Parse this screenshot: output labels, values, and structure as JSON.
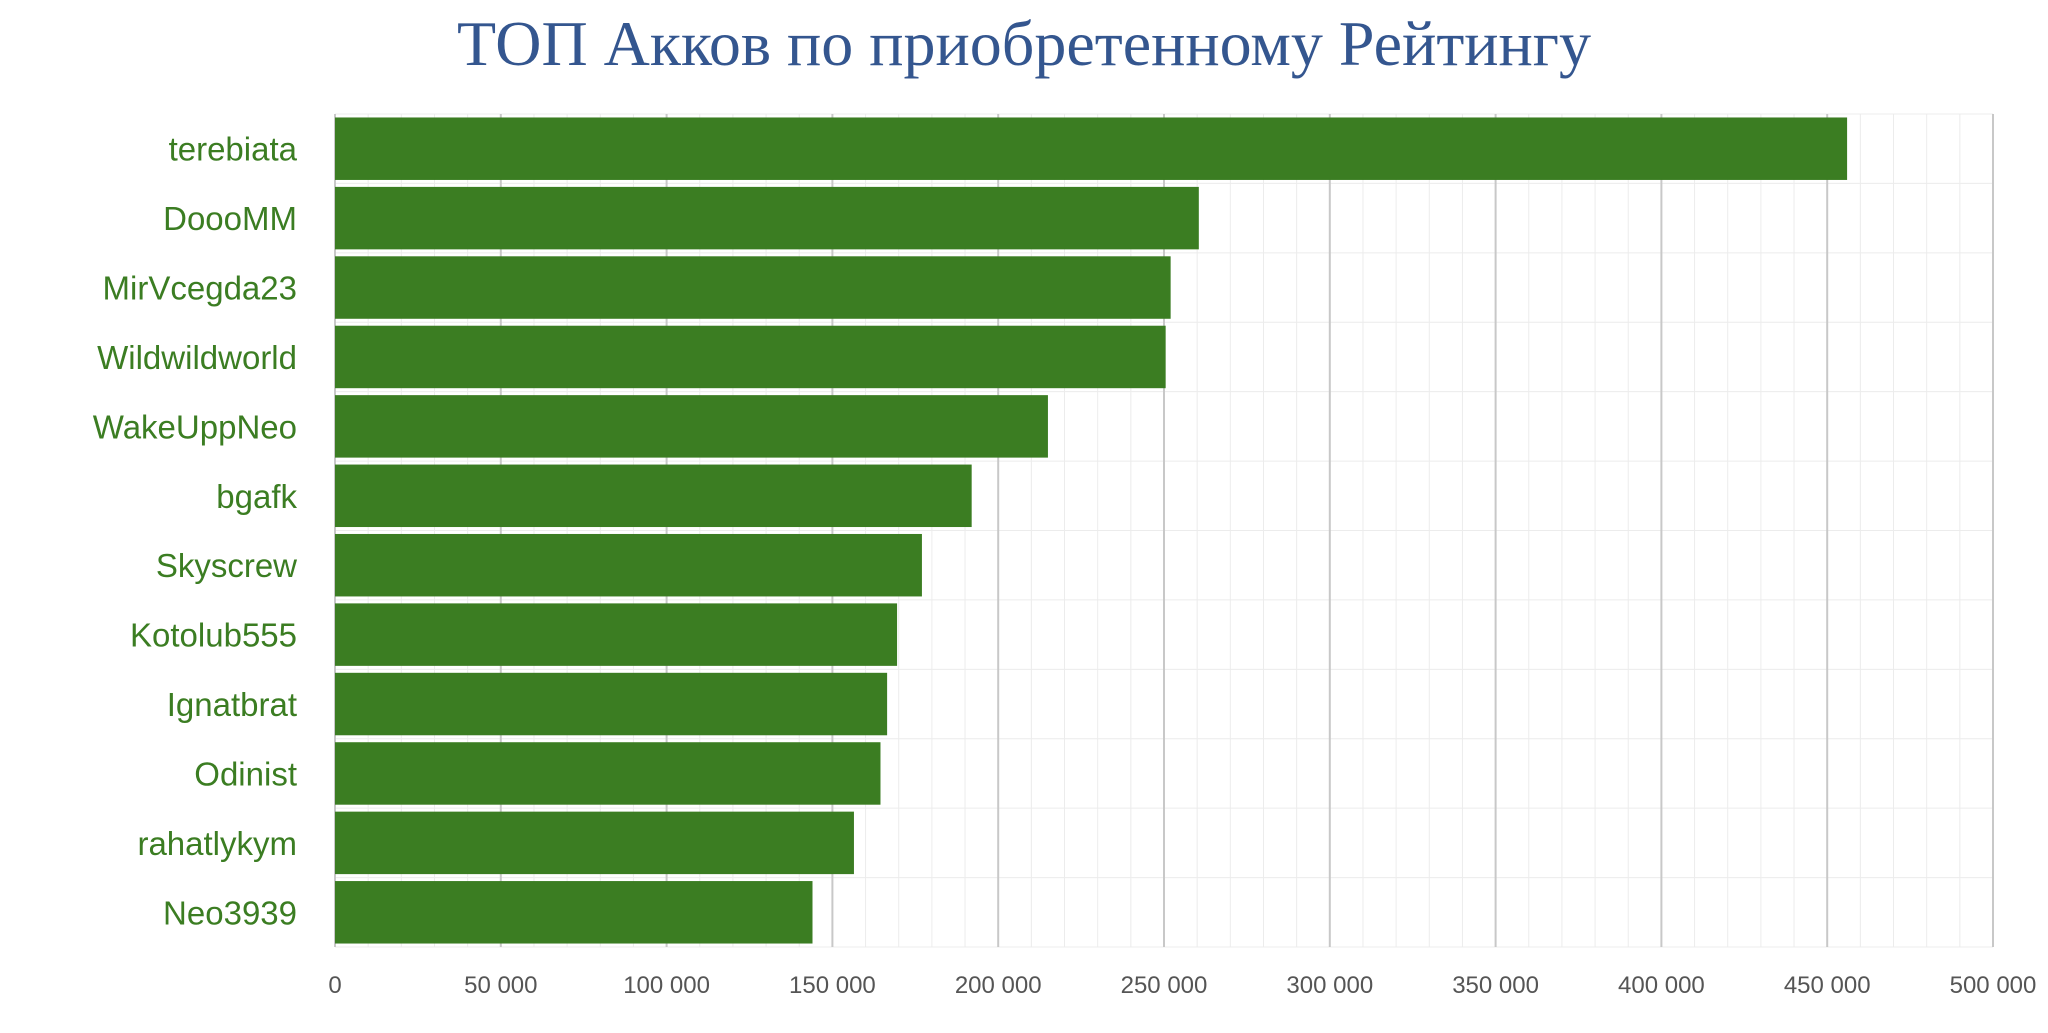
{
  "chart_data": {
    "type": "bar",
    "orientation": "horizontal",
    "title": "ТОП Акков по приобретенному Рейтингу",
    "xlabel": "",
    "ylabel": "",
    "categories": [
      "terebiata",
      "DoooMM",
      "MirVcegda23",
      "Wildwildworld",
      "WakeUppNeo",
      "bgafk",
      "Skyscrew",
      "Kotolub555",
      "Ignatbrat",
      "Odinist",
      "rahatlykym",
      "Neo3939"
    ],
    "values": [
      456000,
      260500,
      252000,
      250500,
      215000,
      192000,
      177000,
      169500,
      166500,
      164500,
      156500,
      144000
    ],
    "xlim": [
      0,
      500000
    ],
    "ticks": [
      0,
      50000,
      100000,
      150000,
      200000,
      250000,
      300000,
      350000,
      400000,
      450000,
      500000
    ],
    "tick_labels": [
      "0",
      "50 000",
      "100 000",
      "150 000",
      "200 000",
      "250 000",
      "300 000",
      "350 000",
      "400 000",
      "450 000",
      "500 000"
    ],
    "grid": true,
    "legend": "none",
    "colors": {
      "bar": "#3b7d22",
      "label": "#3b7d22",
      "title": "#34568f",
      "major_grid": "#c8c8c8",
      "minor_grid": "#ececec",
      "tick_text": "#555555"
    }
  }
}
